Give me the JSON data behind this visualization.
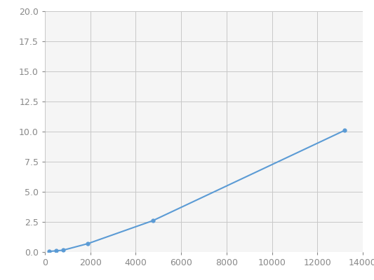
{
  "x": [
    200,
    500,
    800,
    1900,
    4750,
    13200
  ],
  "y": [
    0.05,
    0.1,
    0.15,
    0.7,
    2.6,
    10.1
  ],
  "line_color": "#5b9bd5",
  "marker_color": "#5b9bd5",
  "marker_size": 4.5,
  "line_width": 1.5,
  "xlim": [
    0,
    14000
  ],
  "ylim": [
    0,
    20.0
  ],
  "xticks": [
    0,
    2000,
    4000,
    6000,
    8000,
    10000,
    12000,
    14000
  ],
  "yticks": [
    0.0,
    2.5,
    5.0,
    7.5,
    10.0,
    12.5,
    15.0,
    17.5,
    20.0
  ],
  "grid_color": "#c8c8c8",
  "background_color": "#f5f5f5",
  "fig_background": "#ffffff",
  "tick_labelsize": 9,
  "tick_color": "#888888"
}
